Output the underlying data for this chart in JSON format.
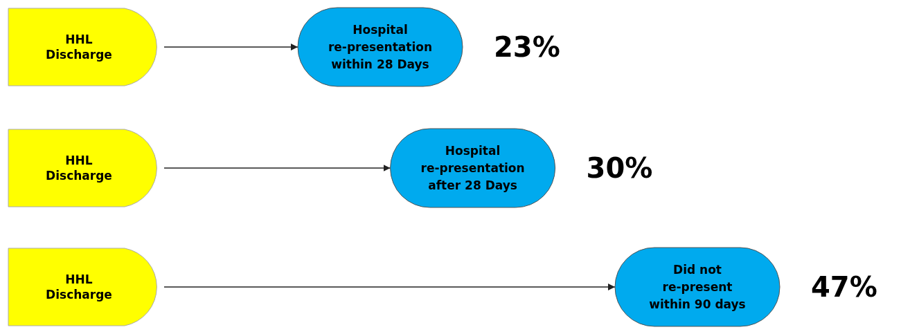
{
  "chart_data": {
    "type": "other",
    "categories": [
      "Hospital\nre-presentation\nwithin 28 Days",
      "Hospital\nre-presentation\nafter 28 Days",
      "Did not\nre-present\nwithin 90 days"
    ],
    "values": [
      23,
      30,
      47
    ],
    "value_labels": [
      "23%",
      "30%",
      "47%"
    ],
    "colors": [
      "#00aaee",
      "#00aaee",
      "#00aaee"
    ],
    "annotations": [
      "HHL\nDischarge",
      "HHL\nDischarge",
      "HHL\nDischarge"
    ]
  }
}
